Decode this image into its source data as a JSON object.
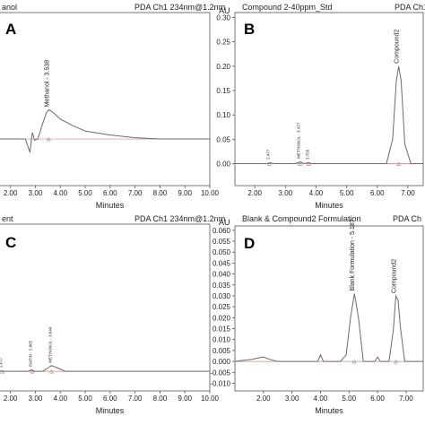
{
  "colors": {
    "trace": "#6b6b6b",
    "baseline": "#d98080",
    "axis": "#555555",
    "text": "#222222"
  },
  "chart_data": [
    {
      "type": "line",
      "panel": "A",
      "title_left": "anol",
      "title_right": "PDA Ch1 234nm@1.2nm",
      "xlabel": "Minutes",
      "x_ticks": [
        "2.00",
        "3.00",
        "4.00",
        "5.00",
        "6.00",
        "7.00",
        "8.00",
        "9.00",
        "10.00"
      ],
      "xlim": [
        1.4,
        10.0
      ],
      "ylim": [
        -0.35,
        0.95
      ],
      "series": [
        {
          "x": [
            1.4,
            2.6,
            2.78,
            2.88,
            2.97,
            3.1,
            3.3,
            3.45,
            3.55,
            3.7,
            4.0,
            4.5,
            5.0,
            6.0,
            7.0,
            8.0,
            10.0
          ],
          "y": [
            0.0,
            0.0,
            -0.1,
            0.05,
            -0.01,
            0.0,
            0.12,
            0.2,
            0.22,
            0.2,
            0.15,
            0.1,
            0.06,
            0.03,
            0.01,
            0.0,
            0.0
          ]
        }
      ],
      "peak_labels": [
        {
          "text": "Methanol - 3.538",
          "x": 3.538,
          "y": 0.22
        }
      ]
    },
    {
      "type": "line",
      "panel": "B",
      "y_unit": "AU",
      "title_left": "Compound 2-40ppm_Std",
      "title_right": "PDA Ch1",
      "xlabel": "Minutes",
      "x_ticks": [
        "2.00",
        "3.00",
        "4.00",
        "5.00",
        "6.00",
        "7.00"
      ],
      "y_ticks": [
        "0.00",
        "0.05",
        "0.10",
        "0.15",
        "0.20",
        "0.25",
        "0.30"
      ],
      "xlim": [
        1.35,
        7.5
      ],
      "ylim": [
        -0.045,
        0.31
      ],
      "series": [
        {
          "x": [
            1.35,
            2.4,
            2.5,
            2.6,
            3.3,
            3.5,
            3.6,
            3.75,
            3.85,
            4.0,
            6.3,
            6.5,
            6.62,
            6.7,
            6.78,
            6.9,
            7.1,
            7.5
          ],
          "y": [
            0.0,
            0.0,
            0.002,
            0.0,
            0.0,
            0.004,
            0.0,
            0.002,
            0.0,
            0.0,
            0.0,
            0.05,
            0.17,
            0.2,
            0.17,
            0.04,
            0.0,
            0.0
          ]
        }
      ],
      "peak_labels": [
        {
          "text": "2.477",
          "x": 2.477,
          "y": 0.003
        },
        {
          "text": "METHANOL - 3.477",
          "x": 3.477,
          "y": 0.005
        },
        {
          "text": "3.759",
          "x": 3.759,
          "y": 0.003
        },
        {
          "text": "Compound2",
          "x": 6.7,
          "y": 0.2
        }
      ]
    },
    {
      "type": "line",
      "panel": "C",
      "title_left": "ent",
      "title_right": "PDA Ch1 234nm@1.2nm",
      "xlabel": "Minutes",
      "x_ticks": [
        "2.00",
        "3.00",
        "4.00",
        "5.00",
        "6.00",
        "7.00",
        "8.00",
        "9.00",
        "10.00"
      ],
      "xlim": [
        1.4,
        10.0
      ],
      "ylim": [
        -0.12,
        0.9
      ],
      "series": [
        {
          "x": [
            1.4,
            1.55,
            1.65,
            1.75,
            2.7,
            2.85,
            2.95,
            3.3,
            3.5,
            3.65,
            3.9,
            4.2,
            10.0
          ],
          "y": [
            0.0,
            0.005,
            0.0,
            0.0,
            0.0,
            0.01,
            0.0,
            0.0,
            0.02,
            0.035,
            0.02,
            0.0,
            0.0
          ]
        }
      ],
      "peak_labels": [
        {
          "text": "1.677",
          "x": 1.677,
          "y": 0.005
        },
        {
          "text": "ISATIN - 2.865",
          "x": 2.865,
          "y": 0.01
        },
        {
          "text": "METHANOL - 3.644",
          "x": 3.644,
          "y": 0.035
        }
      ]
    },
    {
      "type": "line",
      "panel": "D",
      "y_unit": "AU",
      "title_left": "Blank & Compound2 Formulation",
      "title_right": "PDA Ch",
      "xlabel": "Minutes",
      "x_ticks": [
        "2.00",
        "3.00",
        "4.00",
        "5.00",
        "6.00",
        "7.00"
      ],
      "y_ticks": [
        "-0.010",
        "-0.005",
        "0.000",
        "0.005",
        "0.010",
        "0.015",
        "0.020",
        "0.025",
        "0.030",
        "0.035",
        "0.040",
        "0.045",
        "0.050",
        "0.055",
        "0.060"
      ],
      "xlim": [
        1.0,
        7.6
      ],
      "ylim": [
        -0.0135,
        0.062
      ],
      "series": [
        {
          "x": [
            1.0,
            1.3,
            1.6,
            1.8,
            2.0,
            2.2,
            2.5,
            3.0,
            3.9,
            4.0,
            4.1,
            4.7,
            4.9,
            5.05,
            5.19,
            5.33,
            5.5,
            5.9,
            6.0,
            6.1,
            6.4,
            6.55,
            6.64,
            6.72,
            6.8,
            6.95,
            7.6
          ],
          "y": [
            0.0,
            0.0005,
            0.001,
            0.0015,
            0.002,
            0.001,
            0.0,
            0.0,
            0.0,
            0.003,
            0.0,
            0.0,
            0.003,
            0.02,
            0.031,
            0.02,
            0.0,
            0.0,
            0.002,
            0.0,
            0.0,
            0.014,
            0.03,
            0.028,
            0.016,
            0.0,
            0.0
          ]
        }
      ],
      "peak_labels": [
        {
          "text": "Blank Formulation - 5.187",
          "x": 5.187,
          "y": 0.031
        },
        {
          "text": "Compound2",
          "x": 6.64,
          "y": 0.03
        }
      ]
    }
  ]
}
